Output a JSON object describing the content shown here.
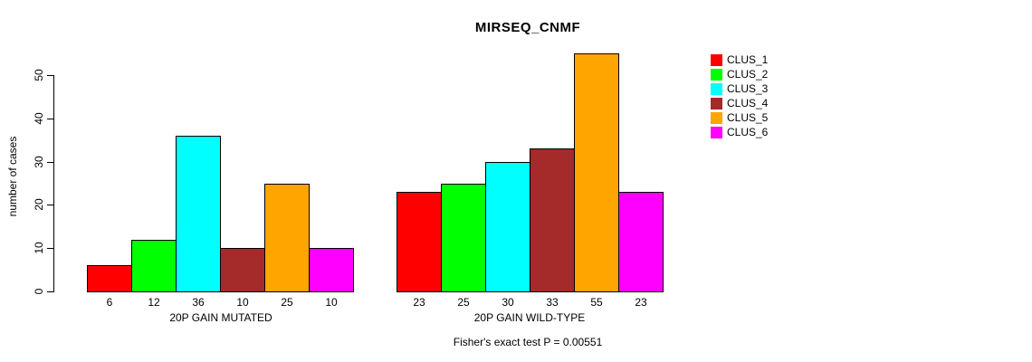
{
  "chart_data": {
    "type": "bar",
    "title": "MIRSEQ_CNMF",
    "ylabel": "number of cases",
    "xlabel": "",
    "yticks": [
      0,
      10,
      20,
      30,
      40,
      50
    ],
    "ylim": [
      0,
      55
    ],
    "grid": false,
    "legend_position": "right",
    "categories": [
      "CLUS_1",
      "CLUS_2",
      "CLUS_3",
      "CLUS_4",
      "CLUS_5",
      "CLUS_6"
    ],
    "legend": [
      {
        "label": "CLUS_1",
        "color": "#FF0000"
      },
      {
        "label": "CLUS_2",
        "color": "#00FF00"
      },
      {
        "label": "CLUS_3",
        "color": "#00FFFF"
      },
      {
        "label": "CLUS_4",
        "color": "#A52A2A"
      },
      {
        "label": "CLUS_5",
        "color": "#FFA500"
      },
      {
        "label": "CLUS_6",
        "color": "#FF00FF"
      }
    ],
    "series": [
      {
        "name": "20P GAIN MUTATED",
        "values": [
          6,
          12,
          36,
          10,
          25,
          10
        ]
      },
      {
        "name": "20P GAIN WILD-TYPE",
        "values": [
          23,
          25,
          30,
          33,
          55,
          23
        ]
      }
    ],
    "groups": [
      {
        "label": "20P GAIN MUTATED",
        "values": [
          6,
          12,
          36,
          10,
          25,
          10
        ]
      },
      {
        "label": "20P GAIN WILD-TYPE",
        "values": [
          23,
          25,
          30,
          33,
          55,
          23
        ]
      }
    ],
    "footer": "Fisher's exact test P = 0.00551"
  }
}
